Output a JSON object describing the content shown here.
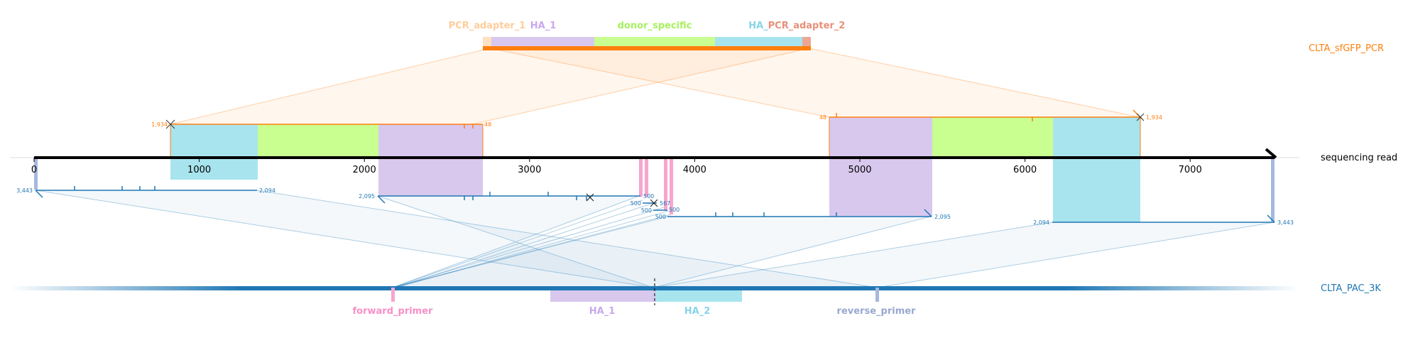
{
  "tracks": {
    "pcr_product": "CLTA_sfGFP_PCR",
    "read": "sequencing read",
    "reference": "CLTA_PAC_3K"
  },
  "pcr_features": [
    "PCR_adapter_1",
    "HA_1",
    "donor_specific",
    "HA_",
    "PCR_adapter_2"
  ],
  "reference_features": [
    "forward_primer",
    "HA_1",
    "HA_2",
    "reverse_primer"
  ],
  "read_axis": {
    "ticks": [
      0,
      1000,
      2000,
      3000,
      4000,
      5000,
      6000,
      7000
    ],
    "tick_labels": [
      "0",
      "1000",
      "2000",
      "3000",
      "4000",
      "5000",
      "6000",
      "7000"
    ],
    "length": 7700
  },
  "pcr_alignments": [
    {
      "id": "left",
      "start_label": "1,934",
      "end_label": "48",
      "read_start": 820,
      "read_end": 2710
    },
    {
      "id": "right",
      "start_label": "48",
      "end_label": "1,934",
      "read_start": 4820,
      "read_end": 6700
    }
  ],
  "ref_alignments": [
    {
      "id": "a",
      "start_label": "3,443",
      "end_label": "2,094"
    },
    {
      "id": "b",
      "start_label": "2,095",
      "end_label": "500"
    },
    {
      "id": "c1",
      "start_label": "500",
      "end_label": "567"
    },
    {
      "id": "c2",
      "start_label": "500",
      "end_label": "500"
    },
    {
      "id": "c3",
      "start_label": "500",
      "end_label": "500"
    },
    {
      "id": "d",
      "start_label": "500",
      "end_label": "2,095"
    },
    {
      "id": "e",
      "start_label": "2,094",
      "end_label": "3,443"
    }
  ],
  "colors": {
    "pcr": "#ff7f0e",
    "ref": "#1f77b4",
    "adapter_1": "#ffcc99",
    "adapter_2": "#e8907a",
    "ha_1": "#d8c8ee",
    "donor": "#c8ff90",
    "ha_2": "#a8e4ee",
    "primer_fwd": "#f7a5cf",
    "primer_rev": "#a7b8e0"
  }
}
